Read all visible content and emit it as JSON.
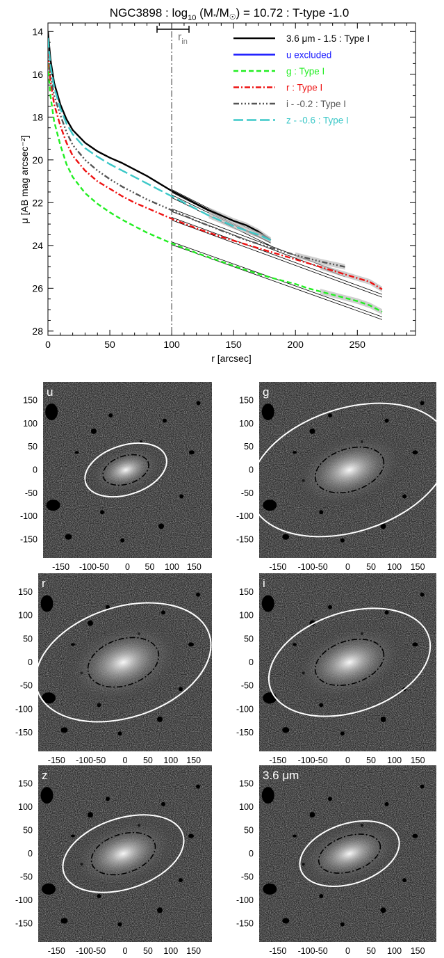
{
  "figure": {
    "title": {
      "prefix": "NGC3898 : log",
      "sub": "10",
      "mass": " (M",
      "star": "*",
      "slash": "/M",
      "sun": "☉",
      "suffix": ") = 10.72 : T-type -1.0"
    },
    "break_marker": {
      "label": "r",
      "sub": "in"
    },
    "panel_labels": [
      "u",
      "g",
      "r",
      "i",
      "z",
      "3.6 μm"
    ],
    "panel_x_ticks": [
      "-150",
      "-100-50",
      "0",
      "50",
      "100",
      "150"
    ],
    "panel_y_ticks": [
      "150",
      "100",
      "50",
      "0",
      "-50",
      "-100",
      "-150"
    ]
  },
  "colors": {
    "black": "#000000",
    "blue": "#1a1aff",
    "green": "#22ee22",
    "red": "#ee1111",
    "gray": "#555555",
    "cyan": "#3cc8c8",
    "marker_gray": "#777777"
  },
  "chart_data": {
    "type": "line",
    "xlabel": "r [arcsec]",
    "ylabel": "μ [AB mag arcsec⁻²]",
    "xlim": [
      0,
      297
    ],
    "ylim": [
      28.2,
      13.6
    ],
    "y_inverted": true,
    "xticks": [
      0,
      50,
      100,
      150,
      200,
      250
    ],
    "yticks": [
      14,
      16,
      18,
      20,
      22,
      24,
      26,
      28
    ],
    "break_radius": 100,
    "legend_position": "top-right",
    "series": [
      {
        "name": "3.6 μm - 1.5 : Type I",
        "color": "#000000",
        "dash": "solid",
        "x": [
          0,
          2,
          5,
          10,
          15,
          20,
          30,
          40,
          50,
          60,
          70,
          80,
          90,
          100,
          110,
          120,
          130,
          140,
          150,
          160,
          170,
          180
        ],
        "y": [
          14.0,
          15.3,
          16.4,
          17.4,
          18.1,
          18.6,
          19.2,
          19.6,
          19.9,
          20.15,
          20.45,
          20.75,
          21.1,
          21.45,
          21.75,
          22.05,
          22.35,
          22.6,
          22.85,
          23.05,
          23.35,
          23.75
        ],
        "fit_x": [
          100,
          180
        ],
        "fit_y": [
          21.45,
          23.8
        ]
      },
      {
        "name": "u excluded",
        "color": "#1a1aff",
        "dash": "solid",
        "x": [],
        "y": []
      },
      {
        "name": "g : Type I",
        "color": "#22ee22",
        "dash": "dash",
        "x": [
          0,
          2,
          5,
          10,
          15,
          20,
          30,
          40,
          50,
          60,
          70,
          80,
          90,
          100,
          120,
          140,
          160,
          180,
          200,
          210,
          220,
          230,
          240,
          250,
          260,
          270
        ],
        "y": [
          15.5,
          17.0,
          18.2,
          19.3,
          20.2,
          20.8,
          21.55,
          22.05,
          22.45,
          22.8,
          23.1,
          23.4,
          23.65,
          23.9,
          24.35,
          24.75,
          25.15,
          25.5,
          25.8,
          26.0,
          26.15,
          26.3,
          26.45,
          26.6,
          26.8,
          27.1
        ],
        "fit_x": [
          100,
          270
        ],
        "fit_y": [
          23.9,
          27.4
        ]
      },
      {
        "name": "r : Type I",
        "color": "#ee1111",
        "dash": "dashdot",
        "x": [
          0,
          2,
          5,
          10,
          15,
          20,
          30,
          40,
          50,
          60,
          70,
          80,
          90,
          100,
          120,
          140,
          160,
          180,
          200,
          220,
          240,
          260,
          270
        ],
        "y": [
          15.0,
          16.3,
          17.4,
          18.4,
          19.2,
          19.8,
          20.5,
          21.0,
          21.35,
          21.7,
          22.0,
          22.25,
          22.5,
          22.75,
          23.2,
          23.6,
          23.95,
          24.3,
          24.65,
          25.0,
          25.35,
          25.7,
          26.05
        ],
        "fit_x": [
          100,
          270
        ],
        "fit_y": [
          22.75,
          26.35
        ]
      },
      {
        "name": "i - -0.2 : Type I",
        "color": "#555555",
        "dash": "dashdotdotdot",
        "x": [
          0,
          2,
          5,
          10,
          15,
          20,
          30,
          40,
          50,
          60,
          70,
          80,
          90,
          100,
          120,
          140,
          160,
          180,
          200,
          220,
          240
        ],
        "y": [
          14.8,
          16.0,
          17.0,
          17.9,
          18.7,
          19.3,
          20.0,
          20.5,
          20.9,
          21.25,
          21.55,
          21.85,
          22.1,
          22.35,
          22.85,
          23.3,
          23.75,
          24.1,
          24.45,
          24.75,
          25.0
        ],
        "fit_x": [
          100,
          240
        ],
        "fit_y": [
          22.35,
          25.4
        ]
      },
      {
        "name": "z - -0.6 : Type I",
        "color": "#3cc8c8",
        "dash": "longdash",
        "x": [
          0,
          2,
          5,
          10,
          15,
          20,
          30,
          40,
          50,
          60,
          70,
          80,
          90,
          100,
          110,
          120,
          130,
          140,
          150,
          160,
          170,
          180
        ],
        "y": [
          14.3,
          15.6,
          16.6,
          17.6,
          18.3,
          18.8,
          19.45,
          19.85,
          20.2,
          20.5,
          20.8,
          21.1,
          21.4,
          21.7,
          22.0,
          22.3,
          22.6,
          22.85,
          23.1,
          23.3,
          23.5,
          23.75
        ],
        "fit_x": [
          100,
          180
        ],
        "fit_y": [
          21.7,
          23.95
        ]
      }
    ]
  }
}
